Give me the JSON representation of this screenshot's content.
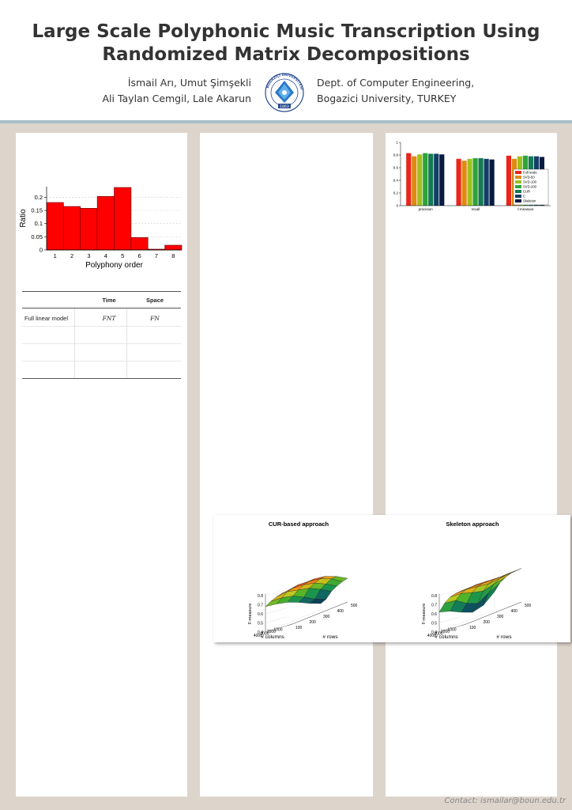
{
  "header": {
    "title_line1": "Large Scale Polyphonic Music Transcription Using",
    "title_line2": "Randomized Matrix Decompositions",
    "authors_line1": "İsmail Arı, Umut Şimşekli",
    "authors_line2": "Ali Taylan Cemgil, Lale Akarun",
    "affiliation_line1": "Dept. of Computer Engineering,",
    "affiliation_line2": "Bogazici University, TURKEY",
    "seal": {
      "text": "BOĞAZİÇİ ÜNİVERSİTESİ",
      "year": "1863"
    }
  },
  "table": {
    "headers": [
      "",
      "Time",
      "Space"
    ],
    "rows": [
      [
        "Full linear model",
        "FNT",
        "FN"
      ],
      [
        "",
        "",
        ""
      ],
      [
        "",
        "",
        ""
      ],
      [
        "",
        "",
        ""
      ]
    ]
  },
  "chart_data": [
    {
      "type": "bar",
      "title": "",
      "xlabel": "Polyphony order",
      "ylabel": "Ratio",
      "categories": [
        "1",
        "2",
        "3",
        "4",
        "5",
        "6",
        "7",
        "8"
      ],
      "values": [
        0.18,
        0.165,
        0.158,
        0.203,
        0.237,
        0.047,
        0.003,
        0.018
      ],
      "ylim": [
        0,
        0.24
      ],
      "yticks": [
        "0",
        "0.05",
        "0.1",
        "0.15",
        "0.2"
      ],
      "grid": true,
      "color": "#ff0000"
    },
    {
      "type": "bar",
      "title": "",
      "categories": [
        "precision",
        "recall",
        "f-measure"
      ],
      "series": [
        {
          "name": "Full scale",
          "color": "#e8261a",
          "values": [
            0.83,
            0.74,
            0.79
          ]
        },
        {
          "name": "SVD-50",
          "color": "#e08a12",
          "values": [
            0.78,
            0.71,
            0.74
          ]
        },
        {
          "name": "SVD-100",
          "color": "#9ec11e",
          "values": [
            0.81,
            0.74,
            0.78
          ]
        },
        {
          "name": "SVD-200",
          "color": "#2fa33a",
          "values": [
            0.83,
            0.75,
            0.79
          ]
        },
        {
          "name": "CUR",
          "color": "#147a52",
          "values": [
            0.82,
            0.75,
            0.78
          ]
        },
        {
          "name": "C",
          "color": "#123e66",
          "values": [
            0.82,
            0.74,
            0.78
          ]
        },
        {
          "name": "Skeleton",
          "color": "#091a40",
          "values": [
            0.81,
            0.73,
            0.77
          ]
        }
      ],
      "ylim": [
        0,
        1
      ],
      "yticks": [
        "0",
        "0.2",
        "0.4",
        "0.6",
        "0.8",
        "1"
      ],
      "legend": "right"
    },
    {
      "type": "heatmap",
      "title": "CUR-based approach",
      "xlabel": "# columns",
      "ylabel": "# rows",
      "zlabel": "F-measure",
      "xticks": [
        "1000",
        "2000",
        "3000",
        "4000"
      ],
      "yticks": [
        "100",
        "200",
        "300",
        "400",
        "500"
      ],
      "zticks": [
        "0.4",
        "0.5",
        "0.6",
        "0.7",
        "0.8"
      ],
      "z": [
        [
          0.68,
          0.66,
          0.63,
          0.58,
          0.52,
          0.47
        ],
        [
          0.72,
          0.71,
          0.68,
          0.62,
          0.55,
          0.5
        ],
        [
          0.75,
          0.76,
          0.73,
          0.7,
          0.64,
          0.57
        ],
        [
          0.77,
          0.78,
          0.77,
          0.74,
          0.68,
          0.61
        ],
        [
          0.78,
          0.8,
          0.79,
          0.77,
          0.72,
          0.64
        ],
        [
          0.78,
          0.8,
          0.8,
          0.78,
          0.73,
          0.66
        ]
      ]
    },
    {
      "type": "heatmap",
      "title": "Skeleton approach",
      "xlabel": "# columns",
      "ylabel": "# rows",
      "zlabel": "F-measure",
      "xticks": [
        "1000",
        "2000",
        "3000",
        "4000"
      ],
      "yticks": [
        "100",
        "200",
        "300",
        "400",
        "500"
      ],
      "zticks": [
        "0.4",
        "0.5",
        "0.6",
        "0.7",
        "0.8"
      ],
      "z": [
        [
          0.62,
          0.58,
          0.52,
          0.47,
          0.5,
          0.6
        ],
        [
          0.7,
          0.68,
          0.6,
          0.55,
          0.62,
          0.68
        ],
        [
          0.75,
          0.74,
          0.7,
          0.67,
          0.7,
          0.72
        ],
        [
          0.77,
          0.77,
          0.75,
          0.73,
          0.74,
          0.75
        ],
        [
          0.78,
          0.78,
          0.77,
          0.76,
          0.76,
          0.76
        ],
        [
          0.78,
          0.79,
          0.78,
          0.77,
          0.77,
          0.77
        ]
      ]
    }
  ],
  "footer": {
    "contact": "Contact: ismailar@boun.edu.tr"
  }
}
